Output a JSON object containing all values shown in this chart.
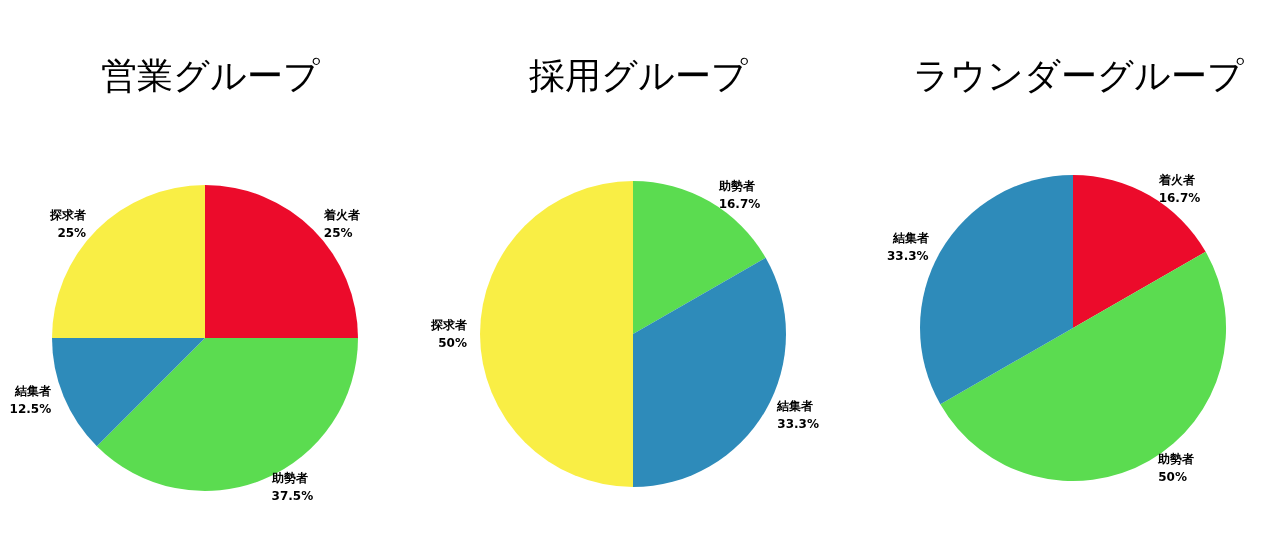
{
  "chart_data": [
    {
      "type": "pie",
      "title": "営業グループ",
      "categories": [
        "着火者",
        "助勢者",
        "結集者",
        "探求者"
      ],
      "values": [
        25,
        37.5,
        12.5,
        25
      ],
      "value_labels": [
        "25%",
        "37.5%",
        "12.5%",
        "25%"
      ],
      "colors": [
        "#ec0b2b",
        "#5bdc50",
        "#2e8bba",
        "#f9ee45"
      ]
    },
    {
      "type": "pie",
      "title": "採用グループ",
      "categories": [
        "助勢者",
        "結集者",
        "探求者"
      ],
      "values": [
        16.7,
        33.3,
        50
      ],
      "value_labels": [
        "16.7%",
        "33.3%",
        "50%"
      ],
      "colors": [
        "#5bdc50",
        "#2e8bba",
        "#f9ee45"
      ]
    },
    {
      "type": "pie",
      "title": "ラウンダーグループ",
      "categories": [
        "着火者",
        "助勢者",
        "結集者"
      ],
      "values": [
        16.7,
        50,
        33.3
      ],
      "value_labels": [
        "16.7%",
        "50%",
        "33.3%"
      ],
      "colors": [
        "#ec0b2b",
        "#5bdc50",
        "#2e8bba"
      ]
    }
  ]
}
